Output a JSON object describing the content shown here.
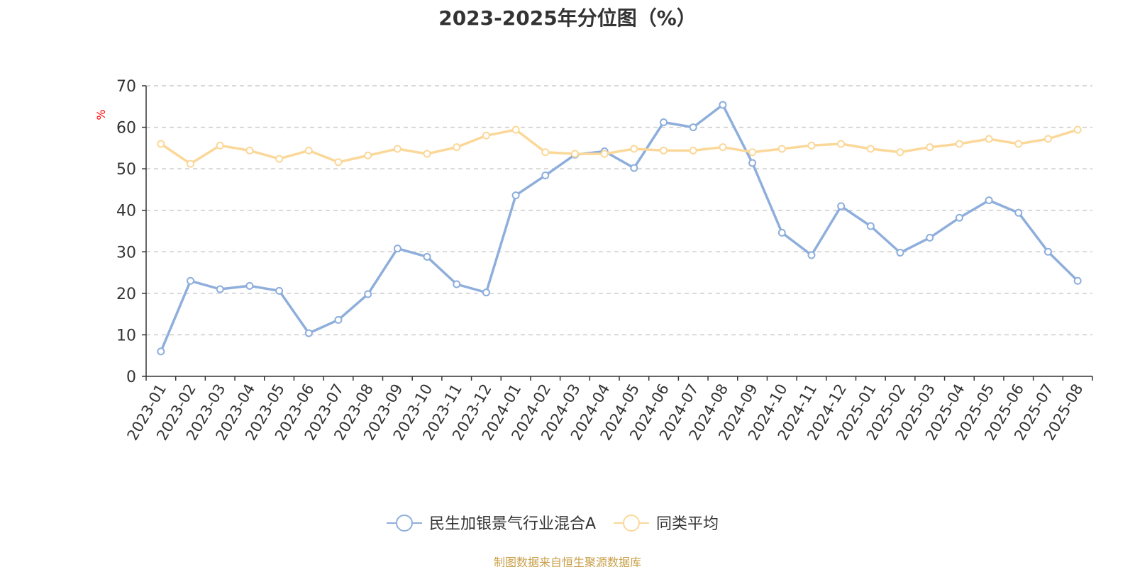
{
  "chart_data": {
    "type": "line",
    "title": "2023-2025年分位图（%）",
    "ylabel": "%",
    "xlabel": "",
    "ylim": [
      0,
      70
    ],
    "yticks": [
      0,
      10,
      20,
      30,
      40,
      50,
      60,
      70
    ],
    "grid": true,
    "legend_position": "bottom-center",
    "categories": [
      "2023-01",
      "2023-02",
      "2023-03",
      "2023-04",
      "2023-05",
      "2023-06",
      "2023-07",
      "2023-08",
      "2023-09",
      "2023-10",
      "2023-11",
      "2023-12",
      "2024-01",
      "2024-02",
      "2024-03",
      "2024-04",
      "2024-05",
      "2024-06",
      "2024-07",
      "2024-08",
      "2024-09",
      "2024-10",
      "2024-11",
      "2024-12",
      "2025-01",
      "2025-02",
      "2025-03",
      "2025-04",
      "2025-05",
      "2025-06",
      "2025-07",
      "2025-08"
    ],
    "series": [
      {
        "name": "民生加银景气行业混合A",
        "color": "#8eaedc",
        "values": [
          6.0,
          23.0,
          21.0,
          21.8,
          20.6,
          10.4,
          13.6,
          19.8,
          30.8,
          28.8,
          22.2,
          20.2,
          43.6,
          48.4,
          53.4,
          54.2,
          50.2,
          61.2,
          60.0,
          65.4,
          51.4,
          34.6,
          29.2,
          41.0,
          36.2,
          29.8,
          33.4,
          38.2,
          42.4,
          39.4,
          30.0,
          23.0
        ]
      },
      {
        "name": "同类平均",
        "color": "#fbd899",
        "values": [
          56.0,
          51.2,
          55.6,
          54.4,
          52.4,
          54.4,
          51.6,
          53.2,
          54.8,
          53.6,
          55.2,
          58.0,
          59.4,
          54.0,
          53.6,
          53.6,
          54.8,
          54.4,
          54.4,
          55.2,
          54.0,
          54.8,
          55.6,
          56.0,
          54.8,
          54.0,
          55.2,
          56.0,
          57.2,
          56.0,
          57.2,
          59.4
        ]
      }
    ]
  },
  "footer": {
    "source": "制图数据来自恒生聚源数据库"
  },
  "style": {
    "axis_color": "#333333",
    "grid_color": "#cccccc",
    "ylabel_color": "#ff0000",
    "footer_color": "#c8a04a"
  }
}
